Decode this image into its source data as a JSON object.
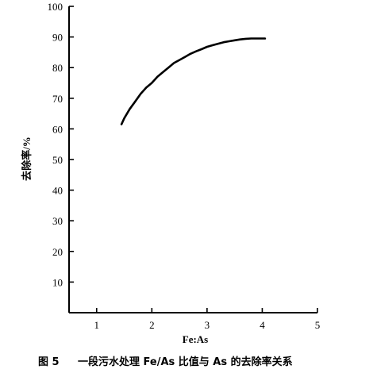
{
  "chart_data": {
    "type": "line",
    "title": "",
    "xlabel": "Fe:As",
    "ylabel": "去除率/%",
    "xlim": [
      0.5,
      5
    ],
    "ylim": [
      0,
      100
    ],
    "x_ticks": [
      1,
      2,
      3,
      4,
      5
    ],
    "y_ticks": [
      10,
      20,
      30,
      40,
      50,
      60,
      70,
      80,
      90,
      100
    ],
    "grid": false,
    "series": [
      {
        "x": [
          1.45,
          1.5,
          1.6,
          1.7,
          1.8,
          1.9,
          2.0,
          2.1,
          2.2,
          2.3,
          2.4,
          2.5,
          2.6,
          2.7,
          2.8,
          2.9,
          3.0,
          3.1,
          3.2,
          3.3,
          3.4,
          3.5,
          3.6,
          3.7,
          3.8,
          3.9,
          4.0,
          4.05
        ],
        "y": [
          61.5,
          63.5,
          66.5,
          69.0,
          71.5,
          73.5,
          75.0,
          77.0,
          78.5,
          80.0,
          81.5,
          82.5,
          83.5,
          84.5,
          85.3,
          86.0,
          86.8,
          87.3,
          87.8,
          88.3,
          88.6,
          88.9,
          89.2,
          89.4,
          89.5,
          89.5,
          89.5,
          89.5
        ]
      }
    ]
  },
  "caption": {
    "figure_label": "图 5",
    "text": "一段污水处理 Fe/As 比值与 As 的去除率关系"
  },
  "colors": {
    "line": "#000000",
    "axis": "#000000"
  }
}
